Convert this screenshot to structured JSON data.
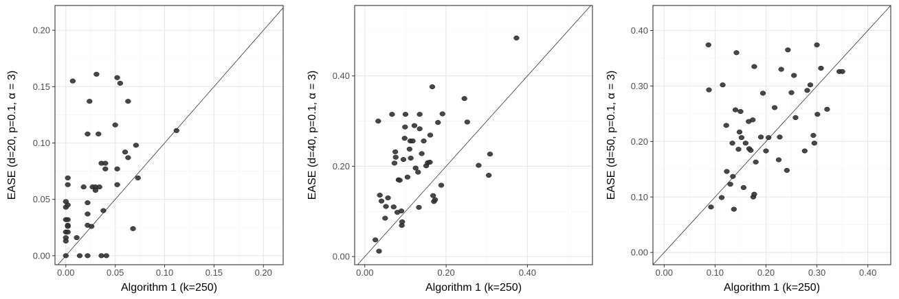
{
  "chart_data": [
    {
      "type": "scatter",
      "xlabel": "Algorithm 1 (k=250)",
      "ylabel": "EASE (d=20, p=0.1, α = 3)",
      "xlim": [
        -0.011,
        0.22
      ],
      "ylim": [
        -0.008,
        0.222
      ],
      "x_ticks": [
        "0.00",
        "0.05",
        "0.10",
        "0.15",
        "0.20"
      ],
      "y_ticks": [
        "0.00",
        "0.05",
        "0.10",
        "0.15",
        "0.20"
      ],
      "x_tick_values": [
        0,
        0.05,
        0.1,
        0.15,
        0.2
      ],
      "y_tick_values": [
        0,
        0.05,
        0.1,
        0.15,
        0.2
      ],
      "grid": true,
      "reference_line": "y = x",
      "point_color": "#333333",
      "points": [
        [
          0.0,
          0.048
        ],
        [
          0.0,
          0.043
        ],
        [
          0.0,
          0.032
        ],
        [
          0.0,
          0.021
        ],
        [
          0.0,
          0.016
        ],
        [
          0.0,
          0.013
        ],
        [
          0.0,
          0.0
        ],
        [
          0.002,
          0.069
        ],
        [
          0.002,
          0.063
        ],
        [
          0.002,
          0.045
        ],
        [
          0.002,
          0.032
        ],
        [
          0.002,
          0.027
        ],
        [
          0.002,
          0.026
        ],
        [
          0.002,
          0.021
        ],
        [
          0.007,
          0.155
        ],
        [
          0.011,
          0.016
        ],
        [
          0.014,
          0.0
        ],
        [
          0.018,
          0.061
        ],
        [
          0.022,
          0.108
        ],
        [
          0.022,
          0.047
        ],
        [
          0.022,
          0.037
        ],
        [
          0.022,
          0.027
        ],
        [
          0.022,
          0.0
        ],
        [
          0.024,
          0.137
        ],
        [
          0.026,
          0.026
        ],
        [
          0.027,
          0.061
        ],
        [
          0.03,
          0.061
        ],
        [
          0.03,
          0.058
        ],
        [
          0.031,
          0.161
        ],
        [
          0.033,
          0.108
        ],
        [
          0.034,
          0.061
        ],
        [
          0.036,
          0.082
        ],
        [
          0.036,
          0.0
        ],
        [
          0.038,
          0.04
        ],
        [
          0.04,
          0.082
        ],
        [
          0.04,
          0.077
        ],
        [
          0.041,
          0.0
        ],
        [
          0.05,
          0.116
        ],
        [
          0.052,
          0.158
        ],
        [
          0.052,
          0.077
        ],
        [
          0.052,
          0.063
        ],
        [
          0.055,
          0.153
        ],
        [
          0.06,
          0.092
        ],
        [
          0.063,
          0.137
        ],
        [
          0.063,
          0.087
        ],
        [
          0.068,
          0.024
        ],
        [
          0.071,
          0.098
        ],
        [
          0.073,
          0.069
        ],
        [
          0.112,
          0.111
        ]
      ]
    },
    {
      "type": "scatter",
      "xlabel": "Algorithm 1 (k=250)",
      "ylabel": "EASE (d=40, p=0.1, α = 3)",
      "xlim": [
        -0.025,
        0.56
      ],
      "ylim": [
        -0.018,
        0.556
      ],
      "x_ticks": [
        "0.00",
        "0.20",
        "0.40"
      ],
      "y_ticks": [
        "0.00",
        "0.20",
        "0.40"
      ],
      "x_tick_values": [
        0,
        0.2,
        0.4
      ],
      "y_tick_values": [
        0,
        0.2,
        0.4
      ],
      "grid": true,
      "reference_line": "y = x",
      "point_color": "#333333",
      "points": [
        [
          0.026,
          0.037
        ],
        [
          0.033,
          0.3
        ],
        [
          0.035,
          0.012
        ],
        [
          0.037,
          0.136
        ],
        [
          0.041,
          0.123
        ],
        [
          0.05,
          0.085
        ],
        [
          0.052,
          0.111
        ],
        [
          0.057,
          0.13
        ],
        [
          0.067,
          0.315
        ],
        [
          0.071,
          0.11
        ],
        [
          0.073,
          0.207
        ],
        [
          0.075,
          0.232
        ],
        [
          0.076,
          0.22
        ],
        [
          0.08,
          0.098
        ],
        [
          0.083,
          0.17
        ],
        [
          0.086,
          0.169
        ],
        [
          0.09,
          0.101
        ],
        [
          0.091,
          0.069
        ],
        [
          0.092,
          0.077
        ],
        [
          0.095,
          0.215
        ],
        [
          0.098,
          0.262
        ],
        [
          0.099,
          0.287
        ],
        [
          0.1,
          0.315
        ],
        [
          0.105,
          0.176
        ],
        [
          0.11,
          0.238
        ],
        [
          0.112,
          0.256
        ],
        [
          0.113,
          0.218
        ],
        [
          0.118,
          0.256
        ],
        [
          0.122,
          0.29
        ],
        [
          0.125,
          0.196
        ],
        [
          0.131,
          0.187
        ],
        [
          0.133,
          0.109
        ],
        [
          0.135,
          0.283
        ],
        [
          0.135,
          0.315
        ],
        [
          0.14,
          0.228
        ],
        [
          0.145,
          0.256
        ],
        [
          0.151,
          0.201
        ],
        [
          0.155,
          0.208
        ],
        [
          0.16,
          0.209
        ],
        [
          0.161,
          0.269
        ],
        [
          0.166,
          0.376
        ],
        [
          0.168,
          0.135
        ],
        [
          0.17,
          0.122
        ],
        [
          0.173,
          0.126
        ],
        [
          0.18,
          0.297
        ],
        [
          0.188,
          0.158
        ],
        [
          0.191,
          0.316
        ],
        [
          0.245,
          0.35
        ],
        [
          0.252,
          0.298
        ],
        [
          0.28,
          0.202
        ],
        [
          0.305,
          0.18
        ],
        [
          0.308,
          0.227
        ],
        [
          0.373,
          0.484
        ]
      ]
    },
    {
      "type": "scatter",
      "xlabel": "Algorithm 1 (k=250)",
      "ylabel": "EASE (d=50, p=0.1, α = 3)",
      "xlim": [
        -0.022,
        0.445
      ],
      "ylim": [
        -0.022,
        0.445
      ],
      "x_ticks": [
        "0.00",
        "0.10",
        "0.20",
        "0.30",
        "0.40"
      ],
      "y_ticks": [
        "0.00",
        "0.10",
        "0.20",
        "0.30",
        "0.40"
      ],
      "x_tick_values": [
        0,
        0.1,
        0.2,
        0.3,
        0.4
      ],
      "y_tick_values": [
        0,
        0.1,
        0.2,
        0.3,
        0.4
      ],
      "grid": true,
      "reference_line": "y = x",
      "point_color": "#333333",
      "points": [
        [
          0.087,
          0.374
        ],
        [
          0.088,
          0.293
        ],
        [
          0.092,
          0.082
        ],
        [
          0.113,
          0.099
        ],
        [
          0.115,
          0.302
        ],
        [
          0.122,
          0.229
        ],
        [
          0.123,
          0.146
        ],
        [
          0.13,
          0.123
        ],
        [
          0.134,
          0.197
        ],
        [
          0.135,
          0.137
        ],
        [
          0.137,
          0.078
        ],
        [
          0.14,
          0.257
        ],
        [
          0.142,
          0.36
        ],
        [
          0.146,
          0.186
        ],
        [
          0.148,
          0.217
        ],
        [
          0.15,
          0.254
        ],
        [
          0.152,
          0.207
        ],
        [
          0.156,
          0.117
        ],
        [
          0.16,
          0.197
        ],
        [
          0.166,
          0.236
        ],
        [
          0.167,
          0.187
        ],
        [
          0.17,
          0.184
        ],
        [
          0.174,
          0.239
        ],
        [
          0.175,
          0.1
        ],
        [
          0.177,
          0.335
        ],
        [
          0.177,
          0.105
        ],
        [
          0.18,
          0.163
        ],
        [
          0.19,
          0.208
        ],
        [
          0.194,
          0.287
        ],
        [
          0.2,
          0.183
        ],
        [
          0.205,
          0.207
        ],
        [
          0.217,
          0.261
        ],
        [
          0.225,
          0.167
        ],
        [
          0.227,
          0.208
        ],
        [
          0.23,
          0.33
        ],
        [
          0.241,
          0.148
        ],
        [
          0.243,
          0.365
        ],
        [
          0.25,
          0.288
        ],
        [
          0.255,
          0.319
        ],
        [
          0.258,
          0.243
        ],
        [
          0.276,
          0.183
        ],
        [
          0.281,
          0.292
        ],
        [
          0.287,
          0.302
        ],
        [
          0.293,
          0.211
        ],
        [
          0.295,
          0.197
        ],
        [
          0.3,
          0.374
        ],
        [
          0.301,
          0.249
        ],
        [
          0.308,
          0.332
        ],
        [
          0.32,
          0.258
        ],
        [
          0.344,
          0.326
        ],
        [
          0.35,
          0.326
        ]
      ]
    }
  ]
}
